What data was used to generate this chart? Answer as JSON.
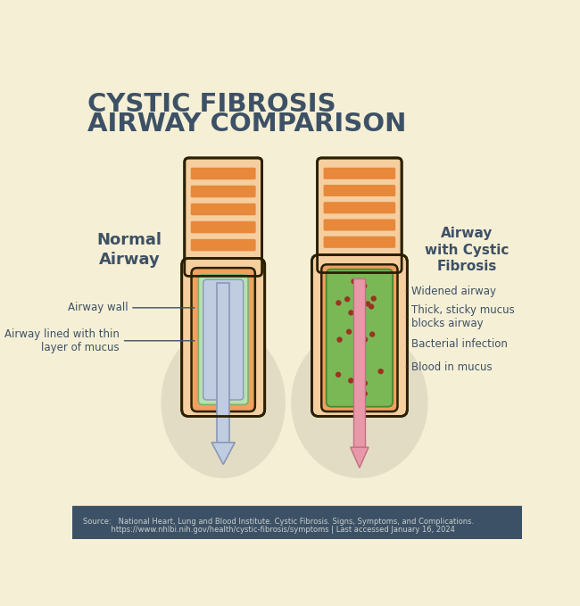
{
  "bg_color": "#f5efd5",
  "footer_color": "#3d5166",
  "title_line1": "CYSTIC FIBROSIS",
  "title_line2": "AIRWAY COMPARISON",
  "title_color": "#3d5166",
  "title_fontsize": 21,
  "label_normal": "Normal\nAirway",
  "label_cf": "Airway\nwith Cystic\nFibrosis",
  "label_color": "#3d5166",
  "source_text1": "Source:   National Heart, Lung and Blood Institute. Cystic Fibrosis. Signs, Symptoms, and Complications.",
  "source_text2": "            https://www.nhlbi.nih.gov/health/cystic-fibrosis/symptoms | Last accessed January 16, 2024",
  "source_color": "#c8d0cc",
  "outer_light": "#f5cfa0",
  "outer_orange": "#f0a855",
  "stripe_orange": "#e8883a",
  "outline_color": "#2a2000",
  "inner_orange": "#f0a060",
  "mucus_green_normal": "#b8e0b0",
  "mucus_green_border": "#80b070",
  "lumen_blue": "#c0cce0",
  "lumen_blue_border": "#8898b8",
  "mucus_cf_green": "#7ab855",
  "mucus_cf_border": "#4a8830",
  "blood_pink": "#e898a8",
  "blood_border": "#c07080",
  "bacteria_color": "#993322",
  "arrow_blue": "#c0cce0",
  "arrow_blue_border": "#8898b8",
  "arrow_pink": "#e898a8",
  "arrow_pink_border": "#c07080",
  "lung_color": "#d5cdb8",
  "ann_color": "#3d5166"
}
